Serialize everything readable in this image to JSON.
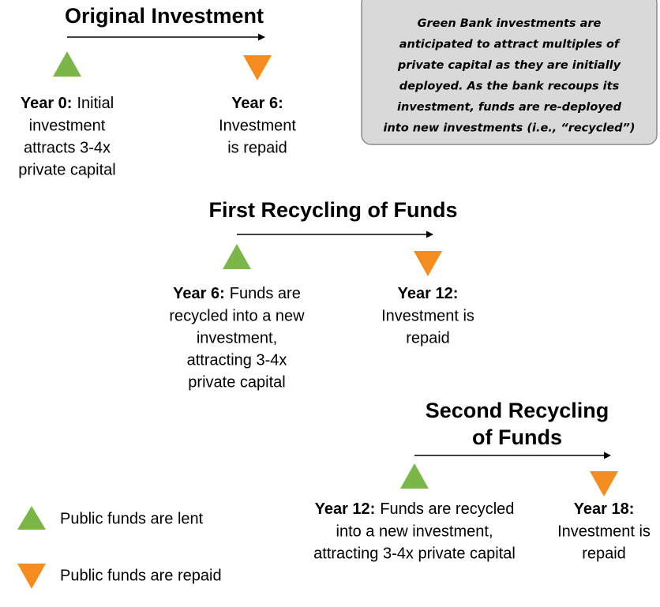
{
  "note": {
    "lines": [
      "Green Bank investments are",
      "anticipated to attract multiples of",
      "private capital as they are initially",
      "deployed. As the bank recoups its",
      "investment, funds are re-deployed",
      "into new investments (i.e., “recycled”)"
    ]
  },
  "stages": [
    {
      "title": [
        "Original Investment"
      ],
      "lent": {
        "year": "Year 0:",
        "rest": "Initial",
        "lines": [
          "investment",
          "attracts 3-4x",
          "private capital"
        ]
      },
      "repaid": {
        "year": "Year 6:",
        "lines": [
          "Investment",
          "is repaid"
        ]
      }
    },
    {
      "title": [
        "First Recycling of Funds"
      ],
      "lent": {
        "year": "Year 6:",
        "rest": "Funds are",
        "lines": [
          "recycled into a new",
          "investment,",
          "attracting 3-4x",
          "private capital"
        ]
      },
      "repaid": {
        "year": "Year 12:",
        "lines": [
          "Investment is",
          "repaid"
        ]
      }
    },
    {
      "title": [
        "Second Recycling",
        "of Funds"
      ],
      "lent": {
        "year": "Year 12:",
        "rest": "Funds are recycled",
        "lines": [
          "into a new investment,",
          "attracting 3-4x private capital"
        ]
      },
      "repaid": {
        "year": "Year 18:",
        "lines": [
          "Investment is",
          "repaid"
        ]
      }
    }
  ],
  "legend": {
    "lent": "Public funds are lent",
    "repaid": "Public funds are repaid"
  }
}
